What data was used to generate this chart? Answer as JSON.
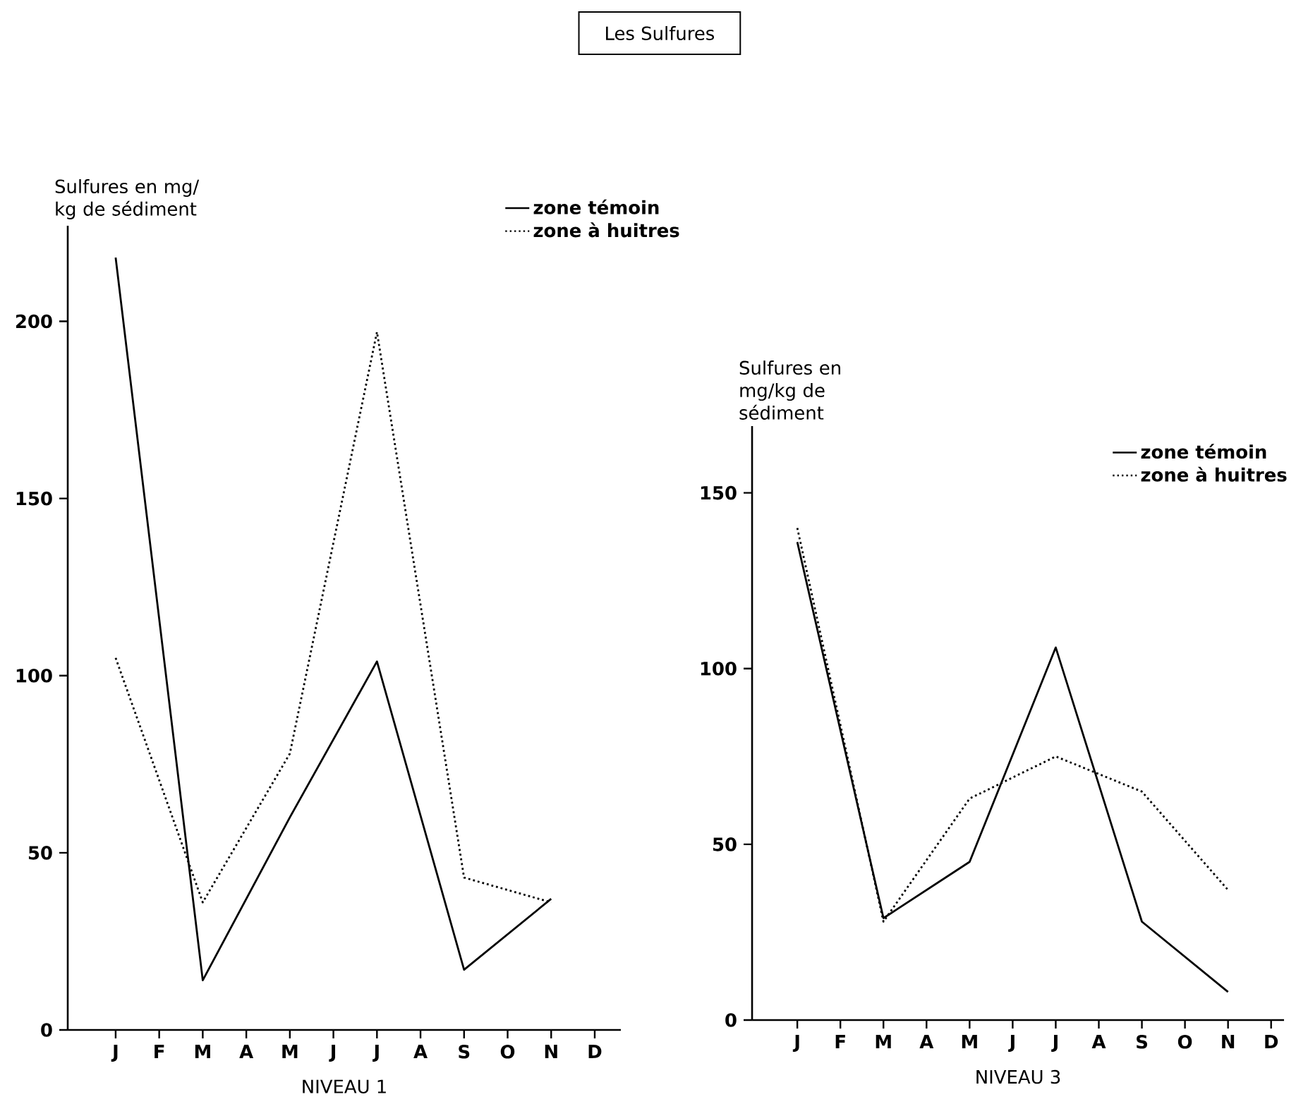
{
  "chart_data": [
    {
      "type": "line",
      "title": "Les Sulfures",
      "ylabel": "Sulfures en mg/ kg de sédiment",
      "xlabel": "NIVEAU 1",
      "categories": [
        "J",
        "F",
        "M",
        "A",
        "M",
        "J",
        "J",
        "A",
        "S",
        "O",
        "N",
        "D"
      ],
      "series": [
        {
          "name": "zone témoin",
          "color": "#000000",
          "line_style": "solid",
          "values": [
            218,
            null,
            14,
            null,
            60,
            null,
            104,
            null,
            17,
            null,
            37,
            null
          ]
        },
        {
          "name": "zone à huitres",
          "color": "#000000",
          "line_style": "dotted",
          "values": [
            105,
            null,
            36,
            null,
            78,
            null,
            197,
            null,
            43,
            null,
            36,
            null
          ]
        }
      ],
      "ylim": [
        0,
        227
      ],
      "yticks": [
        0,
        50,
        100,
        150,
        200
      ],
      "grid": false,
      "legend": "top right",
      "marker": "none"
    },
    {
      "type": "line",
      "ylabel": "Sulfures en mg/kg de sédiment",
      "xlabel": "NIVEAU 3",
      "categories": [
        "J",
        "F",
        "M",
        "A",
        "M",
        "J",
        "J",
        "A",
        "S",
        "O",
        "N",
        "D"
      ],
      "series": [
        {
          "name": "zone témoin",
          "color": "#000000",
          "line_style": "solid",
          "values": [
            136,
            null,
            29,
            null,
            45,
            null,
            106,
            null,
            28,
            null,
            8,
            null
          ]
        },
        {
          "name": "zone à huitres",
          "color": "#000000",
          "line_style": "dotted",
          "values": [
            140,
            null,
            28,
            null,
            63,
            null,
            75,
            null,
            65,
            null,
            37,
            null
          ]
        }
      ],
      "ylim": [
        0,
        169
      ],
      "yticks": [
        0,
        50,
        100,
        150
      ],
      "grid": false,
      "legend": "top right",
      "marker": "none"
    }
  ]
}
